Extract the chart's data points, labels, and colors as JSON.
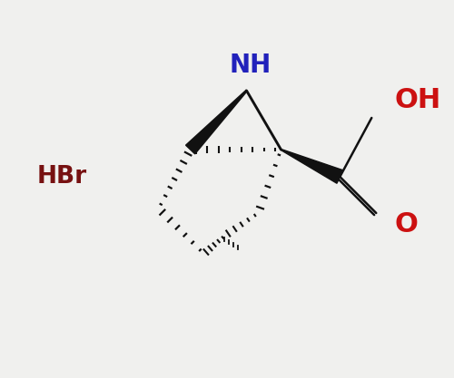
{
  "bg_color": "#f0f0ee",
  "nh_color": "#2222bb",
  "oh_color": "#cc1111",
  "o_color": "#cc1111",
  "hbr_color": "#771111",
  "bond_color": "#111111",
  "hbr_text": "HBr",
  "nh_text": "NH",
  "oh_text": "OH",
  "o_text": "O",
  "figsize": [
    5.0,
    4.17
  ],
  "dpi": 100
}
